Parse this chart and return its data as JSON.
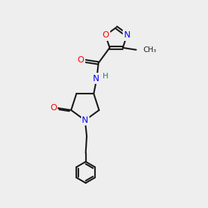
{
  "background_color": "#eeeeee",
  "bond_color": "#1a1a1a",
  "atom_colors": {
    "O": "#ff0000",
    "N": "#0000ff",
    "H": "#008080",
    "C": "#1a1a1a"
  },
  "font_size_atoms": 9,
  "linewidth": 1.6
}
